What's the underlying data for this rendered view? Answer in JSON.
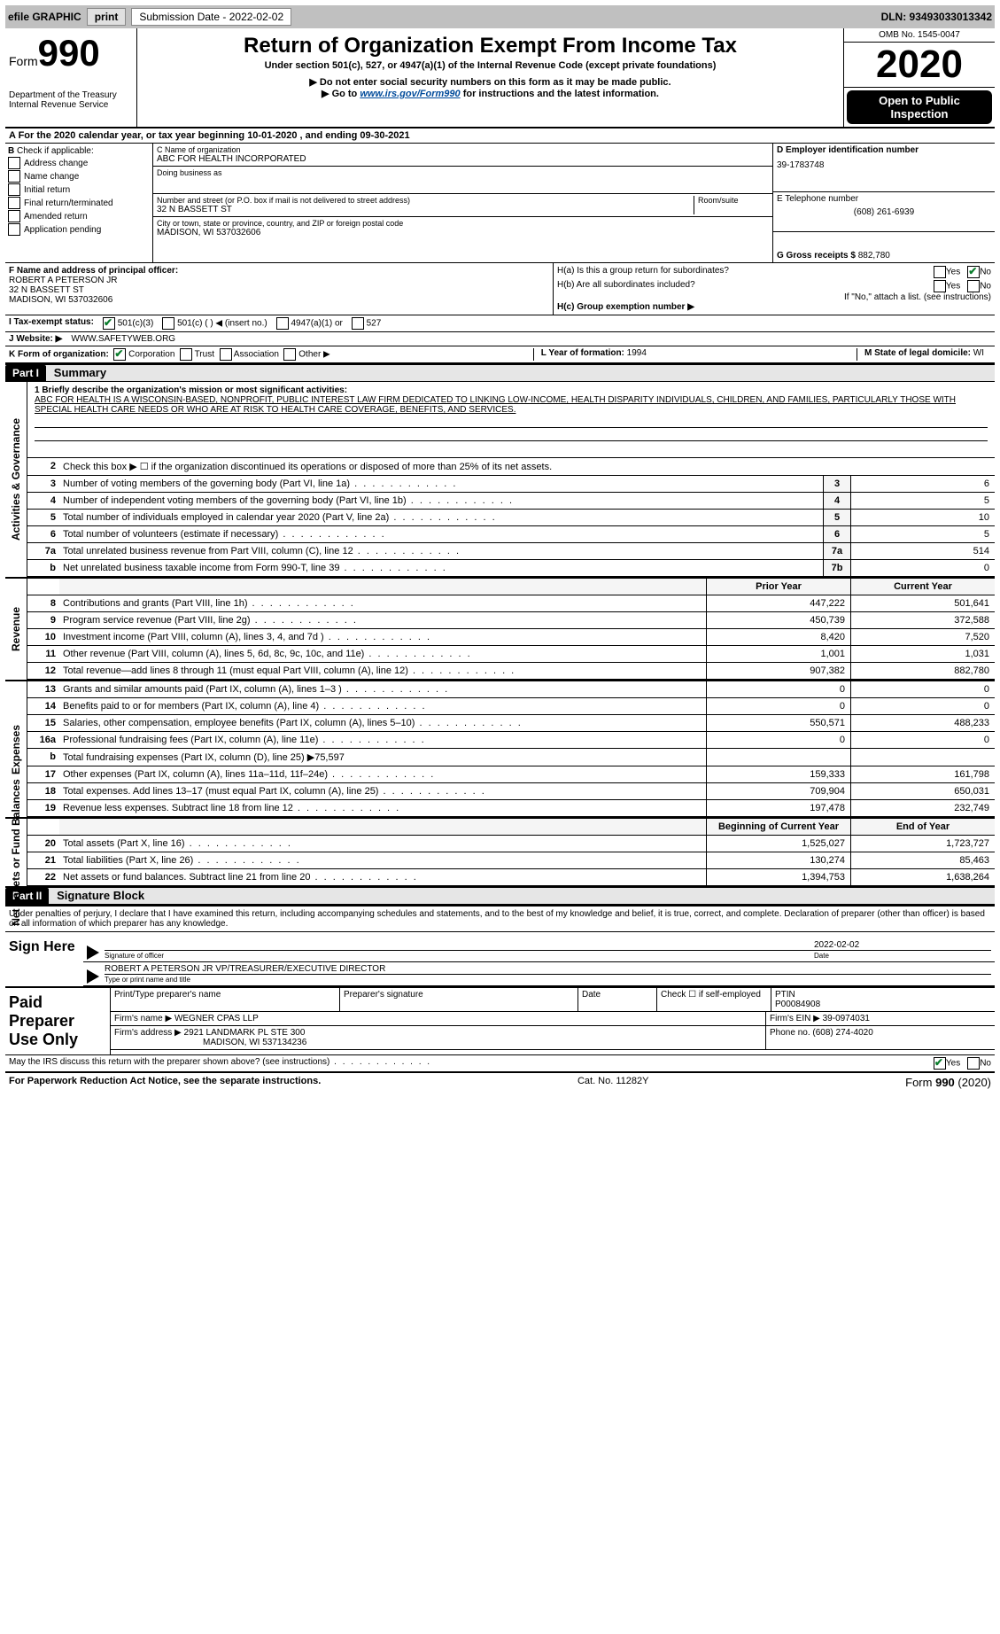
{
  "topbar": {
    "efile_label": "efile GRAPHIC",
    "print_label": "print",
    "submission_label": "Submission Date - 2022-02-02",
    "dln_label": "DLN: 93493033013342"
  },
  "header": {
    "form_word": "Form",
    "form_number": "990",
    "dept1": "Department of the Treasury",
    "dept2": "Internal Revenue Service",
    "title": "Return of Organization Exempt From Income Tax",
    "subtitle": "Under section 501(c), 527, or 4947(a)(1) of the Internal Revenue Code (except private foundations)",
    "note1": "▶ Do not enter social security numbers on this form as it may be made public.",
    "note2_pre": "▶ Go to ",
    "note2_link": "www.irs.gov/Form990",
    "note2_post": " for instructions and the latest information.",
    "omb": "OMB No. 1545-0047",
    "year": "2020",
    "public": "Open to Public Inspection"
  },
  "rowA": "A For the 2020 calendar year, or tax year beginning 10-01-2020    , and ending 09-30-2021",
  "sectionB": {
    "label": "Check if applicable:",
    "items": [
      "Address change",
      "Name change",
      "Initial return",
      "Final return/terminated",
      "Amended return",
      "Application pending"
    ]
  },
  "sectionC": {
    "name_label": "C Name of organization",
    "name": "ABC FOR HEALTH INCORPORATED",
    "dba_label": "Doing business as",
    "addr_label": "Number and street (or P.O. box if mail is not delivered to street address)",
    "addr": "32 N BASSETT ST",
    "room_label": "Room/suite",
    "city_label": "City or town, state or province, country, and ZIP or foreign postal code",
    "city": "MADISON, WI  537032606"
  },
  "sectionD": {
    "ein_label": "D Employer identification number",
    "ein": "39-1783748",
    "phone_label": "E Telephone number",
    "phone": "(608) 261-6939",
    "gross_label": "G Gross receipts $",
    "gross": "882,780"
  },
  "sectionF": {
    "label": "F  Name and address of principal officer:",
    "name": "ROBERT A PETERSON JR",
    "addr1": "32 N BASSETT ST",
    "addr2": "MADISON, WI  537032606"
  },
  "sectionH": {
    "ha": "H(a)  Is this a group return for subordinates?",
    "hb": "H(b)  Are all subordinates included?",
    "hb_note": "If \"No,\" attach a list. (see instructions)",
    "hc": "H(c)  Group exemption number ▶",
    "yes": "Yes",
    "no": "No"
  },
  "rowI": {
    "label": "I   Tax-exempt status:",
    "o1": "501(c)(3)",
    "o2": "501(c) (  ) ◀ (insert no.)",
    "o3": "4947(a)(1) or",
    "o4": "527"
  },
  "rowJ": {
    "label": "J   Website: ▶",
    "value": "WWW.SAFETYWEB.ORG"
  },
  "rowK": {
    "label": "K Form of organization:",
    "o1": "Corporation",
    "o2": "Trust",
    "o3": "Association",
    "o4": "Other ▶"
  },
  "rowL": {
    "year_label": "L Year of formation:",
    "year": "1994",
    "state_label": "M State of legal domicile:",
    "state": "WI"
  },
  "part1": {
    "tag": "Part I",
    "title": "Summary",
    "line1_label": "1  Briefly describe the organization's mission or most significant activities:",
    "mission": "ABC FOR HEALTH IS A WISCONSIN-BASED, NONPROFIT, PUBLIC INTEREST LAW FIRM DEDICATED TO LINKING LOW-INCOME, HEALTH DISPARITY INDIVIDUALS, CHILDREN, AND FAMILIES, PARTICULARLY THOSE WITH SPECIAL HEALTH CARE NEEDS OR WHO ARE AT RISK TO HEALTH CARE COVERAGE, BENEFITS, AND SERVICES.",
    "line2": "Check this box ▶ ☐ if the organization discontinued its operations or disposed of more than 25% of its net assets.",
    "sidelabels": {
      "gov": "Activities & Governance",
      "rev": "Revenue",
      "exp": "Expenses",
      "net": "Net Assets or Fund Balances"
    },
    "gov_lines": [
      {
        "num": "3",
        "desc": "Number of voting members of the governing body (Part VI, line 1a)",
        "box": "3",
        "val": "6"
      },
      {
        "num": "4",
        "desc": "Number of independent voting members of the governing body (Part VI, line 1b)",
        "box": "4",
        "val": "5"
      },
      {
        "num": "5",
        "desc": "Total number of individuals employed in calendar year 2020 (Part V, line 2a)",
        "box": "5",
        "val": "10"
      },
      {
        "num": "6",
        "desc": "Total number of volunteers (estimate if necessary)",
        "box": "6",
        "val": "5"
      },
      {
        "num": "7a",
        "desc": "Total unrelated business revenue from Part VIII, column (C), line 12",
        "box": "7a",
        "val": "514"
      },
      {
        "num": "b",
        "desc": "Net unrelated business taxable income from Form 990-T, line 39",
        "box": "7b",
        "val": "0"
      }
    ],
    "col_headers": {
      "prior": "Prior Year",
      "current": "Current Year"
    },
    "rev_lines": [
      {
        "num": "8",
        "desc": "Contributions and grants (Part VIII, line 1h)",
        "prior": "447,222",
        "current": "501,641"
      },
      {
        "num": "9",
        "desc": "Program service revenue (Part VIII, line 2g)",
        "prior": "450,739",
        "current": "372,588"
      },
      {
        "num": "10",
        "desc": "Investment income (Part VIII, column (A), lines 3, 4, and 7d )",
        "prior": "8,420",
        "current": "7,520"
      },
      {
        "num": "11",
        "desc": "Other revenue (Part VIII, column (A), lines 5, 6d, 8c, 9c, 10c, and 11e)",
        "prior": "1,001",
        "current": "1,031"
      },
      {
        "num": "12",
        "desc": "Total revenue—add lines 8 through 11 (must equal Part VIII, column (A), line 12)",
        "prior": "907,382",
        "current": "882,780"
      }
    ],
    "exp_lines": [
      {
        "num": "13",
        "desc": "Grants and similar amounts paid (Part IX, column (A), lines 1–3 )",
        "prior": "0",
        "current": "0"
      },
      {
        "num": "14",
        "desc": "Benefits paid to or for members (Part IX, column (A), line 4)",
        "prior": "0",
        "current": "0"
      },
      {
        "num": "15",
        "desc": "Salaries, other compensation, employee benefits (Part IX, column (A), lines 5–10)",
        "prior": "550,571",
        "current": "488,233"
      },
      {
        "num": "16a",
        "desc": "Professional fundraising fees (Part IX, column (A), line 11e)",
        "prior": "0",
        "current": "0"
      },
      {
        "num": "b",
        "desc": "Total fundraising expenses (Part IX, column (D), line 25) ▶75,597",
        "prior": "",
        "current": ""
      },
      {
        "num": "17",
        "desc": "Other expenses (Part IX, column (A), lines 11a–11d, 11f–24e)",
        "prior": "159,333",
        "current": "161,798"
      },
      {
        "num": "18",
        "desc": "Total expenses. Add lines 13–17 (must equal Part IX, column (A), line 25)",
        "prior": "709,904",
        "current": "650,031"
      },
      {
        "num": "19",
        "desc": "Revenue less expenses. Subtract line 18 from line 12",
        "prior": "197,478",
        "current": "232,749"
      }
    ],
    "net_headers": {
      "begin": "Beginning of Current Year",
      "end": "End of Year"
    },
    "net_lines": [
      {
        "num": "20",
        "desc": "Total assets (Part X, line 16)",
        "prior": "1,525,027",
        "current": "1,723,727"
      },
      {
        "num": "21",
        "desc": "Total liabilities (Part X, line 26)",
        "prior": "130,274",
        "current": "85,463"
      },
      {
        "num": "22",
        "desc": "Net assets or fund balances. Subtract line 21 from line 20",
        "prior": "1,394,753",
        "current": "1,638,264"
      }
    ]
  },
  "part2": {
    "tag": "Part II",
    "title": "Signature Block",
    "penalty": "Under penalties of perjury, I declare that I have examined this return, including accompanying schedules and statements, and to the best of my knowledge and belief, it is true, correct, and complete. Declaration of preparer (other than officer) is based on all information of which preparer has any knowledge.",
    "sign_here": "Sign Here",
    "sig_officer": "Signature of officer",
    "sig_date": "2022-02-02",
    "date_label": "Date",
    "officer_name": "ROBERT A PETERSON JR  VP/TREASURER/EXECUTIVE DIRECTOR",
    "officer_caption": "Type or print name and title"
  },
  "preparer": {
    "label": "Paid Preparer Use Only",
    "h_name": "Print/Type preparer's name",
    "h_sig": "Preparer's signature",
    "h_date": "Date",
    "h_check": "Check ☐ if self-employed",
    "h_ptin": "PTIN",
    "ptin": "P00084908",
    "firm_name_label": "Firm's name    ▶",
    "firm_name": "WEGNER CPAS LLP",
    "firm_ein_label": "Firm's EIN ▶",
    "firm_ein": "39-0974031",
    "firm_addr_label": "Firm's address ▶",
    "firm_addr1": "2921 LANDMARK PL STE 300",
    "firm_addr2": "MADISON, WI  537134236",
    "phone_label": "Phone no.",
    "phone": "(608) 274-4020"
  },
  "discuss": {
    "text": "May the IRS discuss this return with the preparer shown above? (see instructions)",
    "yes": "Yes",
    "no": "No"
  },
  "footer": {
    "left": "For Paperwork Reduction Act Notice, see the separate instructions.",
    "mid": "Cat. No. 11282Y",
    "right_form": "Form",
    "right_num": "990",
    "right_year": "(2020)"
  },
  "style": {
    "accent": "#0a7d2c",
    "link": "#004b9b",
    "graybar": "#c0c0c0"
  }
}
